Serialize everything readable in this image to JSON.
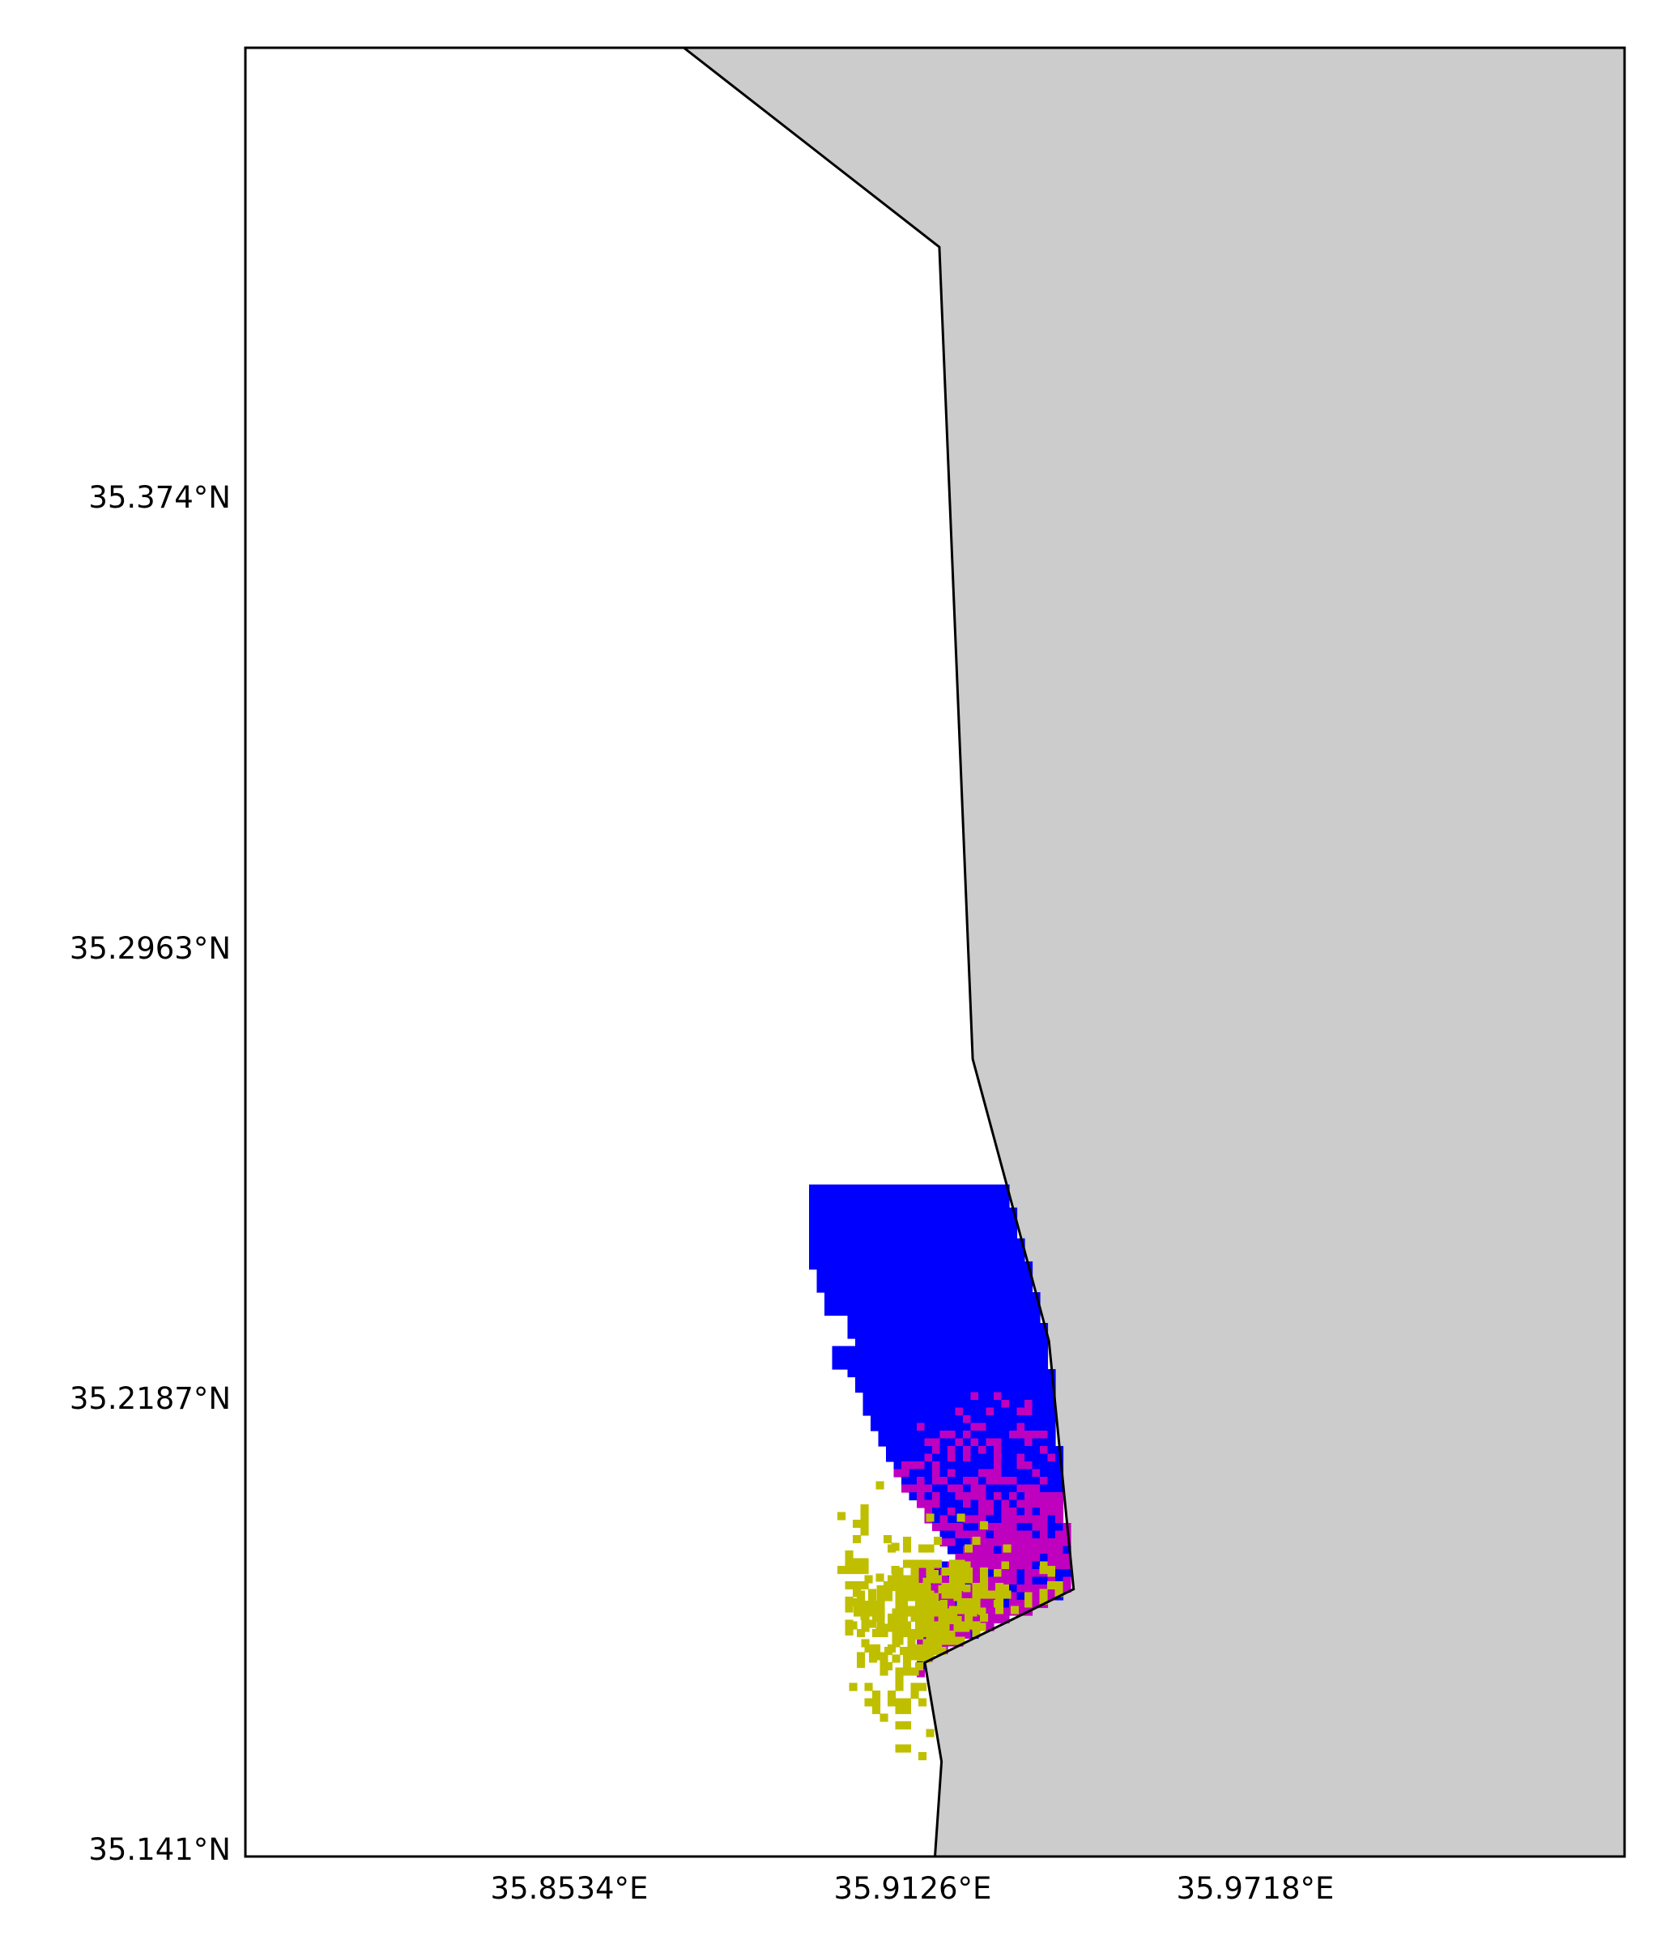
{
  "map": {
    "extent": {
      "lon_min": 35.81,
      "lon_max": 36.0,
      "lat_min": 35.141,
      "lat_max": 35.4515
    },
    "colors": {
      "sea": "#ffffff",
      "land": "#cccccc",
      "coastline": "#000000",
      "frame": "#000000",
      "class_blue": "#0000ff",
      "class_magenta": "#bf00bf",
      "class_olive": "#bfbf00"
    },
    "coastline_points": [
      [
        35.8704,
        35.4515
      ],
      [
        35.9056,
        35.4173
      ],
      [
        35.9102,
        35.2779
      ],
      [
        35.9207,
        35.2295
      ],
      [
        35.9241,
        35.1869
      ],
      [
        35.9036,
        35.1743
      ],
      [
        35.9059,
        35.1573
      ],
      [
        35.905,
        35.141
      ]
    ],
    "lon_ticks": [
      "35.8534°E",
      "35.9126°E",
      "35.9718°E"
    ],
    "lat_ticks": [
      "35.374°N",
      "35.2963°N",
      "35.2187°N",
      "35.141°N"
    ]
  }
}
